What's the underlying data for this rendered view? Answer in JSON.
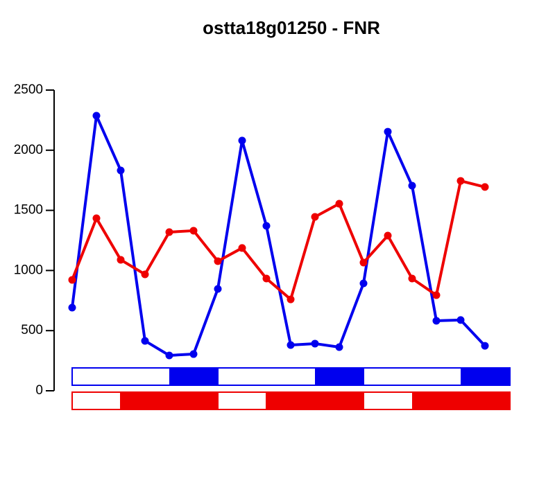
{
  "chart_data": {
    "type": "line",
    "title": "ostta18g01250 - FNR",
    "x": [
      1,
      2,
      3,
      4,
      5,
      6,
      7,
      8,
      9,
      10,
      11,
      12,
      13,
      14,
      15,
      16,
      17,
      18
    ],
    "xlim": [
      1,
      18
    ],
    "series": [
      {
        "color": "#0000ee",
        "values": [
          691,
          2287,
          1832,
          415,
          294,
          305,
          847,
          2080,
          1371,
          380,
          392,
          363,
          893,
          2154,
          1705,
          582,
          588,
          374
        ]
      },
      {
        "color": "#ee0000",
        "values": [
          922,
          1434,
          1089,
          968,
          1319,
          1331,
          1077,
          1187,
          933,
          760,
          1446,
          1555,
          1066,
          1290,
          933,
          795,
          1745,
          1694
        ]
      }
    ],
    "ylim": [
      0,
      2500
    ],
    "yticks": [
      0,
      500,
      1000,
      1500,
      2000,
      2500
    ]
  }
}
